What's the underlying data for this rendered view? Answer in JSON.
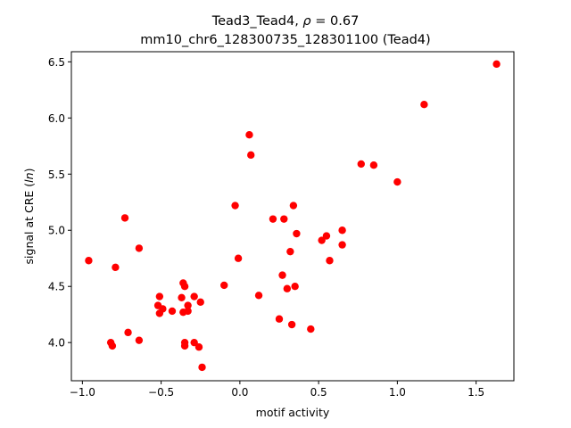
{
  "chart_data": {
    "type": "scatter",
    "title_line1_prefix": "Tead3_Tead4, ",
    "title_rho_symbol": "ρ",
    "title_rho_value": " = 0.67",
    "title_line2": "mm10_chr6_128300735_128301100 (Tead4)",
    "xlabel": "motif activity",
    "ylabel_prefix": "signal at CRE (",
    "ylabel_ln": "ln",
    "ylabel_suffix": ")",
    "xlim": [
      -1.07,
      1.74
    ],
    "ylim": [
      3.66,
      6.59
    ],
    "xticks": [
      -1.0,
      -0.5,
      0.0,
      0.5,
      1.0,
      1.5
    ],
    "xtick_labels": [
      "−1.0",
      "−0.5",
      "0.0",
      "0.5",
      "1.0",
      "1.5"
    ],
    "yticks": [
      4.0,
      4.5,
      5.0,
      5.5,
      6.0,
      6.5
    ],
    "ytick_labels": [
      "4.0",
      "4.5",
      "5.0",
      "5.5",
      "6.0",
      "6.5"
    ],
    "marker_color": "#ff0000",
    "grid": false,
    "points": [
      {
        "x": -0.96,
        "y": 4.73
      },
      {
        "x": -0.82,
        "y": 4.0
      },
      {
        "x": -0.81,
        "y": 3.97
      },
      {
        "x": -0.79,
        "y": 4.67
      },
      {
        "x": -0.73,
        "y": 5.11
      },
      {
        "x": -0.71,
        "y": 4.09
      },
      {
        "x": -0.64,
        "y": 4.84
      },
      {
        "x": -0.64,
        "y": 4.02
      },
      {
        "x": -0.52,
        "y": 4.33
      },
      {
        "x": -0.51,
        "y": 4.26
      },
      {
        "x": -0.51,
        "y": 4.41
      },
      {
        "x": -0.49,
        "y": 4.3
      },
      {
        "x": -0.43,
        "y": 4.28
      },
      {
        "x": -0.37,
        "y": 4.4
      },
      {
        "x": -0.36,
        "y": 4.27
      },
      {
        "x": -0.36,
        "y": 4.53
      },
      {
        "x": -0.35,
        "y": 4.5
      },
      {
        "x": -0.35,
        "y": 3.97
      },
      {
        "x": -0.35,
        "y": 4.0
      },
      {
        "x": -0.33,
        "y": 4.33
      },
      {
        "x": -0.33,
        "y": 4.28
      },
      {
        "x": -0.29,
        "y": 4.41
      },
      {
        "x": -0.29,
        "y": 4.0
      },
      {
        "x": -0.26,
        "y": 3.96
      },
      {
        "x": -0.25,
        "y": 4.36
      },
      {
        "x": -0.24,
        "y": 3.78
      },
      {
        "x": -0.1,
        "y": 4.51
      },
      {
        "x": -0.03,
        "y": 5.22
      },
      {
        "x": -0.01,
        "y": 4.75
      },
      {
        "x": 0.06,
        "y": 5.85
      },
      {
        "x": 0.07,
        "y": 5.67
      },
      {
        "x": 0.12,
        "y": 4.42
      },
      {
        "x": 0.21,
        "y": 5.1
      },
      {
        "x": 0.25,
        "y": 4.21
      },
      {
        "x": 0.27,
        "y": 4.6
      },
      {
        "x": 0.28,
        "y": 5.1
      },
      {
        "x": 0.3,
        "y": 4.48
      },
      {
        "x": 0.32,
        "y": 4.81
      },
      {
        "x": 0.33,
        "y": 4.16
      },
      {
        "x": 0.34,
        "y": 5.22
      },
      {
        "x": 0.35,
        "y": 4.5
      },
      {
        "x": 0.36,
        "y": 4.97
      },
      {
        "x": 0.45,
        "y": 4.12
      },
      {
        "x": 0.52,
        "y": 4.91
      },
      {
        "x": 0.55,
        "y": 4.95
      },
      {
        "x": 0.57,
        "y": 4.73
      },
      {
        "x": 0.65,
        "y": 5.0
      },
      {
        "x": 0.65,
        "y": 4.87
      },
      {
        "x": 0.77,
        "y": 5.59
      },
      {
        "x": 0.85,
        "y": 5.58
      },
      {
        "x": 1.0,
        "y": 5.43
      },
      {
        "x": 1.17,
        "y": 6.12
      },
      {
        "x": 1.63,
        "y": 6.48
      }
    ]
  }
}
